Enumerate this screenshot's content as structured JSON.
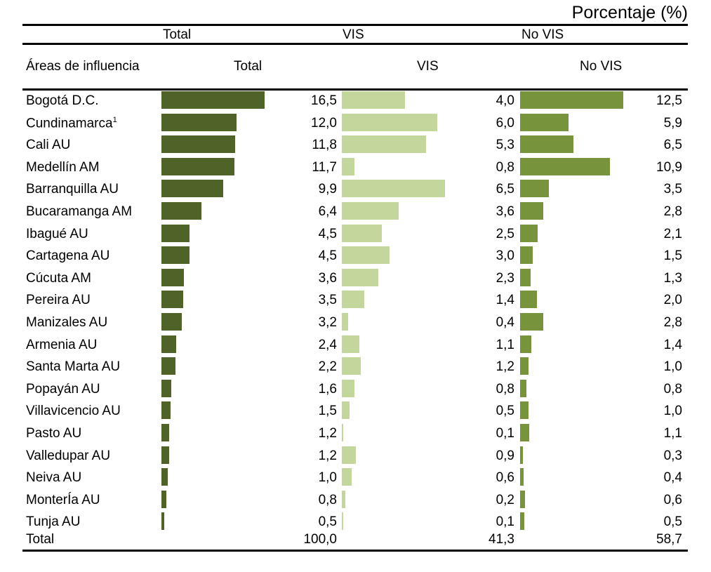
{
  "chart_data": {
    "type": "bar",
    "unit_label": "Porcentaje (%)",
    "group_headers": [
      "Total",
      "VIS",
      "No VIS"
    ],
    "row_header": "Áreas de influencia",
    "column_headers": [
      "Total",
      "VIS",
      "No VIS"
    ],
    "colors": {
      "Total": "#4f6228",
      "VIS": "#c3d69b",
      "No VIS": "#77933c"
    },
    "categories": [
      {
        "name": "Bogotá D.C.",
        "sup": ""
      },
      {
        "name": "Cundinamarca",
        "sup": "1"
      },
      {
        "name": "Cali  AU",
        "sup": ""
      },
      {
        "name": "Medellín  AM",
        "sup": ""
      },
      {
        "name": "Barranquilla  AU",
        "sup": ""
      },
      {
        "name": "Bucaramanga AM",
        "sup": ""
      },
      {
        "name": "Ibagué AU",
        "sup": ""
      },
      {
        "name": "Cartagena AU",
        "sup": ""
      },
      {
        "name": "Cúcuta AM",
        "sup": ""
      },
      {
        "name": "Pereira  AU",
        "sup": ""
      },
      {
        "name": "Manizales AU",
        "sup": ""
      },
      {
        "name": "Armenia  AU",
        "sup": ""
      },
      {
        "name": "Santa Marta AU",
        "sup": ""
      },
      {
        "name": "Popayán AU",
        "sup": ""
      },
      {
        "name": "Villavicencio AU",
        "sup": ""
      },
      {
        "name": "Pasto AU",
        "sup": ""
      },
      {
        "name": "Valledupar AU",
        "sup": ""
      },
      {
        "name": "Neiva AU",
        "sup": ""
      },
      {
        "name": "MonterÍa AU",
        "sup": ""
      },
      {
        "name": "Tunja AU",
        "sup": ""
      }
    ],
    "series": [
      {
        "name": "Total",
        "values": [
          "16,5",
          "12,0",
          "11,8",
          "11,7",
          "9,9",
          "6,4",
          "4,5",
          "4,5",
          "3,6",
          "3,5",
          "3,2",
          "2,4",
          "2,2",
          "1,6",
          "1,5",
          "1,2",
          "1,2",
          "1,0",
          "0,8",
          "0,5"
        ],
        "total": "100,0"
      },
      {
        "name": "VIS",
        "values": [
          "4,0",
          "6,0",
          "5,3",
          "0,8",
          "6,5",
          "3,6",
          "2,5",
          "3,0",
          "2,3",
          "1,4",
          "0,4",
          "1,1",
          "1,2",
          "0,8",
          "0,5",
          "0,1",
          "0,9",
          "0,6",
          "0,2",
          "0,1"
        ],
        "total": "41,3"
      },
      {
        "name": "No VIS",
        "values": [
          "12,5",
          "5,9",
          "6,5",
          "10,9",
          "3,5",
          "2,8",
          "2,1",
          "1,5",
          "1,3",
          "2,0",
          "2,8",
          "1,4",
          "1,0",
          "0,8",
          "1,0",
          "1,1",
          "0,3",
          "0,4",
          "0,6",
          "0,5"
        ],
        "total": "58,7"
      }
    ],
    "total_label": "Total"
  }
}
